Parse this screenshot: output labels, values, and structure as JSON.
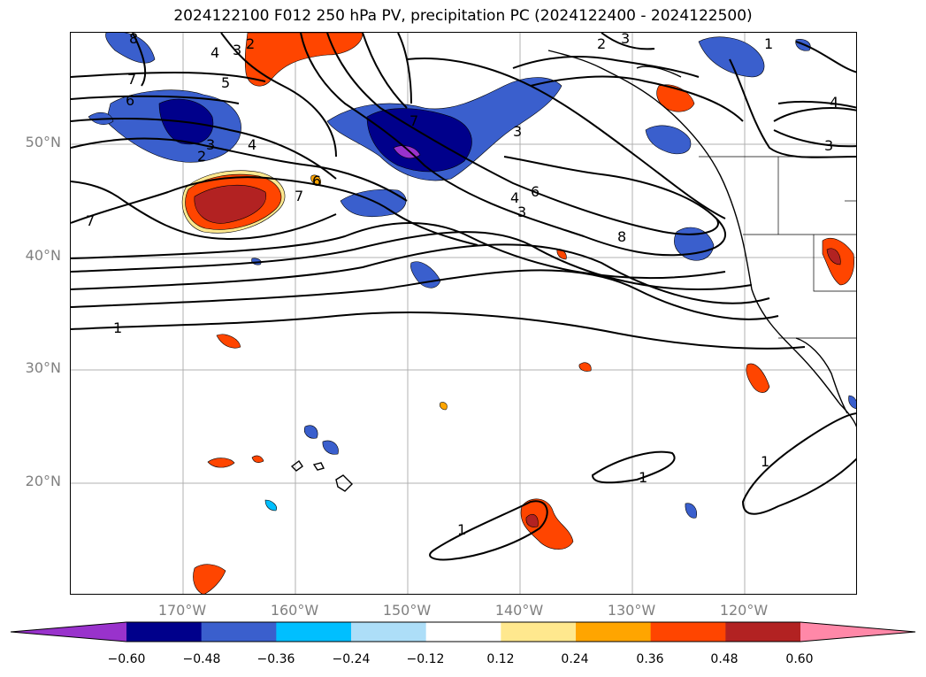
{
  "title": "2024122100 F012 250 hPa PV, precipitation PC (2024122400 - 2024122500)",
  "lat_labels": [
    "50°N",
    "40°N",
    "30°N",
    "20°N"
  ],
  "lon_labels": [
    "170°W",
    "160°W",
    "150°W",
    "140°W",
    "130°W",
    "120°W"
  ],
  "colorbar": {
    "ticks": [
      "−0.60",
      "−0.48",
      "−0.36",
      "−0.24",
      "−0.12",
      "0.12",
      "0.24",
      "0.36",
      "0.48",
      "0.60"
    ],
    "colors": [
      "#9932CC",
      "#00008B",
      "#3A5FCD",
      "#00BFFF",
      "#ADDEF8",
      "#FFFFFF",
      "#FFE88E",
      "#FFA500",
      "#FF4500",
      "#B22222",
      "#FF88A8"
    ]
  },
  "contour_labels": [
    "8",
    "7",
    "6",
    "4",
    "3",
    "3",
    "2",
    "4",
    "7",
    "6",
    "7",
    "3",
    "2",
    "2",
    "3",
    "1",
    "5",
    "6",
    "4",
    "3",
    "7",
    "8",
    "1",
    "1",
    "1",
    "1",
    "4",
    "3"
  ]
}
